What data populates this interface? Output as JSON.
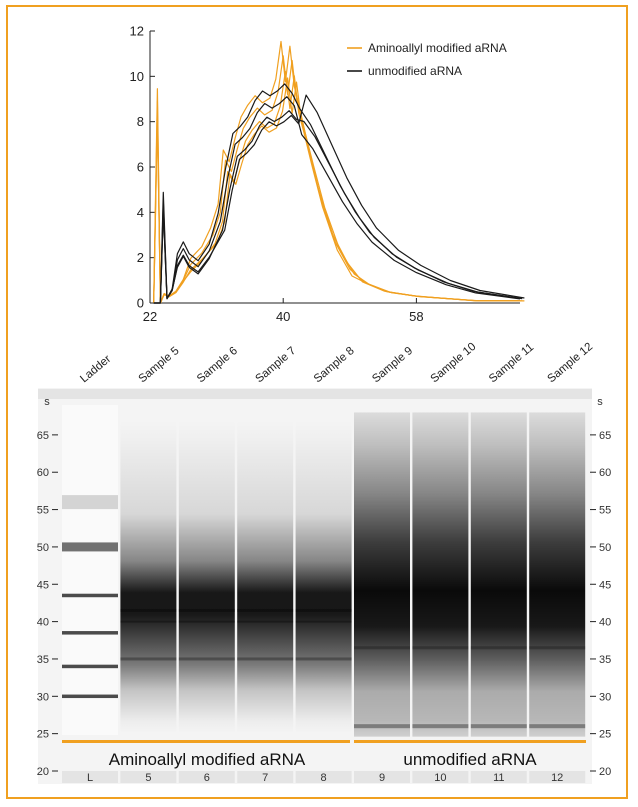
{
  "colors": {
    "aminoallyl": "#f0a020",
    "unmodified": "#1a1a1a",
    "frame": "#f0a020",
    "gel_background": "#f2f2f2",
    "header_strip": "#e6e6e6"
  },
  "chart_data": [
    {
      "type": "line",
      "title": "",
      "xlabel": "",
      "ylabel": "",
      "xlim": [
        22,
        72
      ],
      "ylim": [
        0,
        12
      ],
      "xticks": [
        "22",
        "40",
        "58"
      ],
      "yticks": [
        "0",
        "2",
        "4",
        "6",
        "8",
        "10",
        "12"
      ],
      "grid": false,
      "legend_position": "top-right",
      "series": [
        {
          "name": "Aminoallyl modified aRNA",
          "color": "#f0a020",
          "replicates": 4,
          "x": [
            22.5,
            23.0,
            23.4,
            23.9,
            24.6,
            25.5,
            26.5,
            27.5,
            29.0,
            30.5,
            31.5,
            32.2,
            33.0,
            33.8,
            34.6,
            35.5,
            36.5,
            37.5,
            38.5,
            39.3,
            40.0,
            40.6,
            41.2,
            41.8,
            42.5,
            43.5,
            45.0,
            47.0,
            49.0,
            51.0,
            54.0,
            58.0,
            62.0,
            66.0,
            72.0
          ],
          "y": [
            0.0,
            8.9,
            0.0,
            0.4,
            0.3,
            0.5,
            1.0,
            1.7,
            2.2,
            3.0,
            4.0,
            6.3,
            5.8,
            6.8,
            7.7,
            8.2,
            8.6,
            8.3,
            8.5,
            9.3,
            10.9,
            9.2,
            10.7,
            9.0,
            8.1,
            6.7,
            4.7,
            2.7,
            1.5,
            0.9,
            0.5,
            0.3,
            0.2,
            0.1,
            0.1
          ]
        },
        {
          "name": "unmodified aRNA",
          "color": "#1a1a1a",
          "replicates": 4,
          "x": [
            22.5,
            23.4,
            23.8,
            24.3,
            25.0,
            25.7,
            26.5,
            27.3,
            28.5,
            30.0,
            31.5,
            32.5,
            33.5,
            34.5,
            35.5,
            36.5,
            37.5,
            38.5,
            39.5,
            40.5,
            41.5,
            42.5,
            44.0,
            46.0,
            48.0,
            50.0,
            52.0,
            55.0,
            58.0,
            62.0,
            66.0,
            72.0
          ],
          "y": [
            0.0,
            0.0,
            4.5,
            0.2,
            0.6,
            1.9,
            2.4,
            1.9,
            1.6,
            2.3,
            3.6,
            5.5,
            7.0,
            7.3,
            7.7,
            8.4,
            8.8,
            8.6,
            8.8,
            9.1,
            8.7,
            8.3,
            7.6,
            6.3,
            5.0,
            3.9,
            3.0,
            2.1,
            1.5,
            0.9,
            0.5,
            0.2
          ]
        }
      ]
    },
    {
      "type": "gel",
      "y_unit": "s",
      "ylim": [
        20,
        69
      ],
      "yticks": [
        "20",
        "25",
        "30",
        "35",
        "40",
        "45",
        "50",
        "55",
        "60",
        "65"
      ],
      "lanes": [
        {
          "label": "Ladder",
          "number": "L",
          "kind": "ladder",
          "bands": [
            30,
            34,
            38.5,
            43.5,
            50,
            56
          ]
        },
        {
          "label": "Sample 5",
          "number": "5",
          "kind": "aminoallyl"
        },
        {
          "label": "Sample 6",
          "number": "6",
          "kind": "aminoallyl"
        },
        {
          "label": "Sample 7",
          "number": "7",
          "kind": "aminoallyl"
        },
        {
          "label": "Sample 8",
          "number": "8",
          "kind": "aminoallyl"
        },
        {
          "label": "Sample 9",
          "number": "9",
          "kind": "unmodified"
        },
        {
          "label": "Sample 10",
          "number": "10",
          "kind": "unmodified"
        },
        {
          "label": "Sample 11",
          "number": "11",
          "kind": "unmodified"
        },
        {
          "label": "Sample 12",
          "number": "12",
          "kind": "unmodified"
        }
      ],
      "group_labels": [
        "Aminoallyl modified aRNA",
        "unmodified aRNA"
      ]
    }
  ]
}
